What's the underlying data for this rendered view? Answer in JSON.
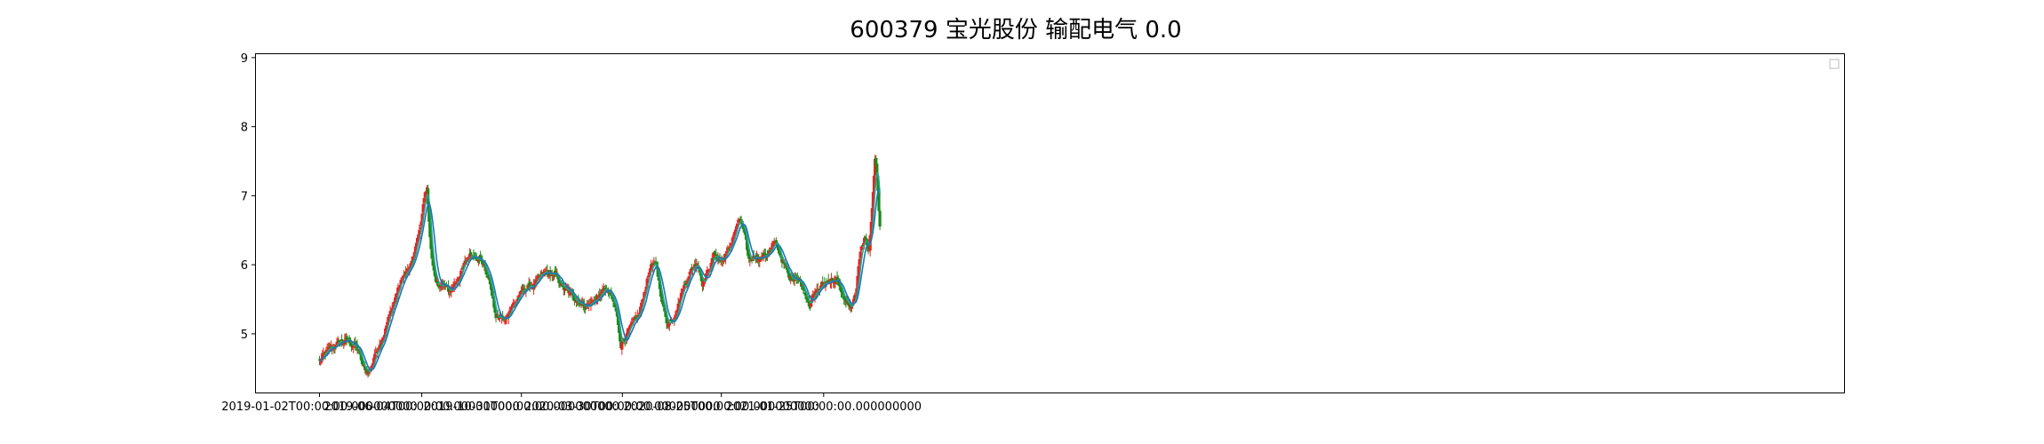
{
  "chart_data": {
    "type": "candlestick",
    "title": "600379 宝光股份 输配电气 0.0",
    "xlabel": "",
    "ylabel": "",
    "ylim": [
      4.15,
      9.05
    ],
    "yticks": [
      5,
      6,
      7,
      8,
      9
    ],
    "xlim_days": [
      -95,
      2280
    ],
    "x_ticks": [
      {
        "label": "2019-01-02T00:00:00.000000000"
      },
      {
        "label": "2019-06-04T00:00:00.000000000"
      },
      {
        "label": "2019-10-31T00:00:00.000000000"
      },
      {
        "label": "2020-03-30T00:00:00.000000000"
      },
      {
        "label": "2020-08-25T00:00:00.000000000"
      },
      {
        "label": "2021-01-25T00:00:00.000000000"
      }
    ],
    "legend": {
      "placement": "top-right",
      "entries": []
    },
    "grid": false,
    "colors": {
      "up": "#e8211f",
      "down": "#1a8a1a",
      "ma_line": "#1f77b4",
      "ma_line_2": "#2ca08a"
    },
    "close_path": [
      [
        "2019-01-02",
        4.6
      ],
      [
        "2019-01-15",
        4.75
      ],
      [
        "2019-02-01",
        4.88
      ],
      [
        "2019-02-15",
        4.9
      ],
      [
        "2019-03-01",
        4.78
      ],
      [
        "2019-03-08",
        4.5
      ],
      [
        "2019-03-18",
        4.45
      ],
      [
        "2019-03-28",
        4.75
      ],
      [
        "2019-04-08",
        5.0
      ],
      [
        "2019-04-18",
        5.3
      ],
      [
        "2019-04-28",
        5.6
      ],
      [
        "2019-05-08",
        5.85
      ],
      [
        "2019-05-18",
        5.95
      ],
      [
        "2019-05-25",
        6.2
      ],
      [
        "2019-06-01",
        6.5
      ],
      [
        "2019-06-08",
        7.0
      ],
      [
        "2019-06-12",
        7.1
      ],
      [
        "2019-06-15",
        6.6
      ],
      [
        "2019-06-20",
        6.0
      ],
      [
        "2019-06-25",
        5.7
      ],
      [
        "2019-07-05",
        5.72
      ],
      [
        "2019-07-15",
        5.6
      ],
      [
        "2019-07-25",
        5.75
      ],
      [
        "2019-08-05",
        5.95
      ],
      [
        "2019-08-15",
        6.15
      ],
      [
        "2019-08-25",
        6.15
      ],
      [
        "2019-09-05",
        6.0
      ],
      [
        "2019-09-15",
        5.7
      ],
      [
        "2019-09-22",
        5.25
      ],
      [
        "2019-10-05",
        5.2
      ],
      [
        "2019-10-15",
        5.38
      ],
      [
        "2019-10-25",
        5.5
      ],
      [
        "2019-11-05",
        5.65
      ],
      [
        "2019-11-20",
        5.72
      ],
      [
        "2019-12-05",
        5.88
      ],
      [
        "2019-12-20",
        5.85
      ],
      [
        "2020-01-05",
        5.62
      ],
      [
        "2020-01-20",
        5.52
      ],
      [
        "2020-02-05",
        5.4
      ],
      [
        "2020-02-20",
        5.5
      ],
      [
        "2020-03-05",
        5.65
      ],
      [
        "2020-03-12",
        5.55
      ],
      [
        "2020-03-20",
        5.35
      ],
      [
        "2020-03-28",
        4.85
      ],
      [
        "2020-04-05",
        5.0
      ],
      [
        "2020-04-15",
        5.12
      ],
      [
        "2020-04-25",
        5.3
      ],
      [
        "2020-05-05",
        5.75
      ],
      [
        "2020-05-12",
        6.0
      ],
      [
        "2020-05-20",
        5.95
      ],
      [
        "2020-05-30",
        5.4
      ],
      [
        "2020-06-05",
        5.15
      ],
      [
        "2020-06-15",
        5.25
      ],
      [
        "2020-06-25",
        5.55
      ],
      [
        "2020-07-05",
        5.8
      ],
      [
        "2020-07-12",
        5.95
      ],
      [
        "2020-07-20",
        6.05
      ],
      [
        "2020-07-28",
        5.75
      ],
      [
        "2020-08-05",
        5.9
      ],
      [
        "2020-08-15",
        6.15
      ],
      [
        "2020-08-25",
        6.05
      ],
      [
        "2020-09-05",
        6.2
      ],
      [
        "2020-09-15",
        6.5
      ],
      [
        "2020-09-22",
        6.65
      ],
      [
        "2020-09-28",
        6.45
      ],
      [
        "2020-10-05",
        6.05
      ],
      [
        "2020-10-15",
        6.15
      ],
      [
        "2020-10-25",
        6.1
      ],
      [
        "2020-11-05",
        6.2
      ],
      [
        "2020-11-15",
        6.3
      ],
      [
        "2020-11-25",
        6.05
      ],
      [
        "2020-12-05",
        5.8
      ],
      [
        "2020-12-15",
        5.85
      ],
      [
        "2020-12-25",
        5.68
      ],
      [
        "2021-01-05",
        5.45
      ],
      [
        "2021-01-15",
        5.62
      ],
      [
        "2021-01-25",
        5.72
      ],
      [
        "2021-02-05",
        5.8
      ],
      [
        "2021-02-15",
        5.75
      ],
      [
        "2021-02-25",
        5.5
      ],
      [
        "2021-03-08",
        5.35
      ],
      [
        "2021-03-15",
        5.6
      ],
      [
        "2021-03-22",
        6.3
      ],
      [
        "2021-03-28",
        6.4
      ],
      [
        "2021-04-03",
        6.2
      ],
      [
        "2021-04-08",
        6.9
      ],
      [
        "2021-04-12",
        7.6
      ],
      [
        "2021-04-16",
        7.1
      ],
      [
        "2021-04-20",
        6.4
      ]
    ]
  }
}
